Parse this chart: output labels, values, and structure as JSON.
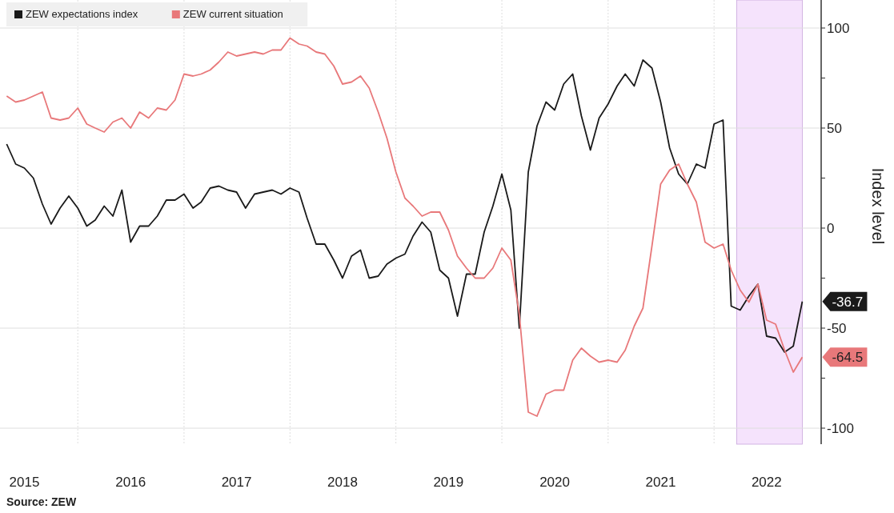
{
  "chart_data": {
    "type": "line",
    "x": [
      "2015-05",
      "2015-06",
      "2015-07",
      "2015-08",
      "2015-09",
      "2015-10",
      "2015-11",
      "2015-12",
      "2016-01",
      "2016-02",
      "2016-03",
      "2016-04",
      "2016-05",
      "2016-06",
      "2016-07",
      "2016-08",
      "2016-09",
      "2016-10",
      "2016-11",
      "2016-12",
      "2017-01",
      "2017-02",
      "2017-03",
      "2017-04",
      "2017-05",
      "2017-06",
      "2017-07",
      "2017-08",
      "2017-09",
      "2017-10",
      "2017-11",
      "2017-12",
      "2018-01",
      "2018-02",
      "2018-03",
      "2018-04",
      "2018-05",
      "2018-06",
      "2018-07",
      "2018-08",
      "2018-09",
      "2018-10",
      "2018-11",
      "2018-12",
      "2019-01",
      "2019-02",
      "2019-03",
      "2019-04",
      "2019-05",
      "2019-06",
      "2019-07",
      "2019-08",
      "2019-09",
      "2019-10",
      "2019-11",
      "2019-12",
      "2020-01",
      "2020-02",
      "2020-03",
      "2020-04",
      "2020-05",
      "2020-06",
      "2020-07",
      "2020-08",
      "2020-09",
      "2020-10",
      "2020-11",
      "2020-12",
      "2021-01",
      "2021-02",
      "2021-03",
      "2021-04",
      "2021-05",
      "2021-06",
      "2021-07",
      "2021-08",
      "2021-09",
      "2021-10",
      "2021-11",
      "2021-12",
      "2022-01",
      "2022-02",
      "2022-03",
      "2022-04",
      "2022-05",
      "2022-06",
      "2022-07",
      "2022-08",
      "2022-09",
      "2022-10",
      "2022-11"
    ],
    "series": [
      {
        "name": "ZEW expectations index",
        "color": "#1a1a1a",
        "values": [
          42,
          32,
          30,
          25,
          12,
          2,
          10,
          16,
          10,
          1,
          4,
          11,
          6,
          19,
          -7,
          1,
          1,
          6,
          14,
          14,
          17,
          10,
          13,
          20,
          21,
          19,
          18,
          10,
          17,
          18,
          19,
          17,
          20,
          18,
          5,
          -8,
          -8,
          -16,
          -25,
          -14,
          -11,
          -25,
          -24,
          -18,
          -15,
          -13,
          -4,
          3,
          -2,
          -21,
          -25,
          -44,
          -23,
          -23,
          -2,
          11,
          27,
          9,
          -50,
          28,
          51,
          63,
          59,
          72,
          77,
          56,
          39,
          55,
          62,
          71,
          77,
          71,
          84,
          80,
          63,
          40,
          27,
          22,
          32,
          30,
          52,
          54,
          -39,
          -41,
          -34,
          -28,
          -54,
          -55,
          -62,
          -59,
          -36.7
        ]
      },
      {
        "name": "ZEW current situation",
        "color": "#e8787a",
        "values": [
          66,
          63,
          64,
          66,
          68,
          55,
          54,
          55,
          60,
          52,
          50,
          48,
          53,
          55,
          50,
          58,
          55,
          60,
          59,
          64,
          77,
          76,
          77,
          79,
          83,
          88,
          86,
          87,
          88,
          87,
          89,
          89,
          95,
          92,
          91,
          88,
          87,
          81,
          72,
          73,
          76,
          70,
          58,
          45,
          28,
          15,
          11,
          6,
          8,
          8,
          -1,
          -14,
          -20,
          -25,
          -25,
          -20,
          -10,
          -16,
          -43,
          -92,
          -94,
          -83,
          -81,
          -81,
          -66,
          -60,
          -64,
          -67,
          -66,
          -67,
          -61,
          -49,
          -40,
          -9,
          22,
          29,
          32,
          22,
          13,
          -7,
          -10,
          -8,
          -21,
          -31,
          -37,
          -28,
          -46,
          -48,
          -61,
          -72,
          -64.5
        ]
      }
    ],
    "ylabel": "Index level",
    "ylim": [
      -108,
      114
    ],
    "yticks": [
      -100,
      {
        "value": -75,
        "label": null
      },
      -50,
      {
        "value": -25,
        "label": null
      },
      0,
      {
        "value": 25,
        "label": null
      },
      50,
      {
        "value": 75,
        "label": null
      },
      100
    ],
    "xlim": [
      "2015-04-08",
      "2023-01-05"
    ],
    "xticks": [
      {
        "value": "2015-07",
        "label": "2015"
      },
      {
        "value": "2016-01",
        "label": null
      },
      {
        "value": "2016-07",
        "label": "2016"
      },
      {
        "value": "2017-01",
        "label": null
      },
      {
        "value": "2017-07",
        "label": "2017"
      },
      {
        "value": "2018-01",
        "label": null
      },
      {
        "value": "2018-07",
        "label": "2018"
      },
      {
        "value": "2019-01",
        "label": null
      },
      {
        "value": "2019-07",
        "label": "2019"
      },
      {
        "value": "2020-01",
        "label": null
      },
      {
        "value": "2020-07",
        "label": "2020"
      },
      {
        "value": "2021-01",
        "label": null
      },
      {
        "value": "2021-07",
        "label": "2021"
      },
      {
        "value": "2022-01",
        "label": null
      },
      {
        "value": "2022-07",
        "label": "2022"
      }
    ],
    "bands": [
      {
        "axis": "x",
        "from": "2022-03-20",
        "to": "2022-11",
        "color": "#f5e3fc"
      }
    ],
    "annotations": [
      {
        "text": "-36.7",
        "x": "2022-11",
        "y": -36.7
      },
      {
        "text": "-64.5",
        "x": "2022-11",
        "y": -64.5
      },
      "Source: ZEW"
    ],
    "grid": true,
    "legend": "top left",
    "line_style": "solid"
  }
}
